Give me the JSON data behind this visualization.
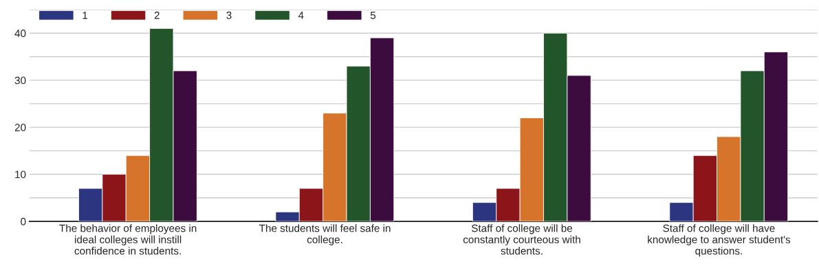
{
  "chart_data": {
    "type": "bar",
    "categories": [
      "The behavior of employees in ideal colleges will instill confidence in students.",
      "The students will feel safe in college.",
      "Staff of college will be constantly courteous with students.",
      "Staff of college will have knowledge to answer student's questions."
    ],
    "series": [
      {
        "name": "1",
        "color": "#2b3580",
        "values": [
          7,
          2,
          4,
          4
        ]
      },
      {
        "name": "2",
        "color": "#8b1519",
        "values": [
          10,
          7,
          7,
          14
        ]
      },
      {
        "name": "3",
        "color": "#d5742a",
        "values": [
          14,
          23,
          22,
          18
        ]
      },
      {
        "name": "4",
        "color": "#22552a",
        "values": [
          41,
          33,
          40,
          32
        ]
      },
      {
        "name": "5",
        "color": "#3c0c3e",
        "values": [
          32,
          39,
          31,
          36
        ]
      }
    ],
    "ylim": [
      0,
      45
    ],
    "yticks": [
      0,
      {
        "value": 5,
        "label": null
      },
      10,
      {
        "value": 15,
        "label": null
      },
      20,
      {
        "value": 25,
        "label": null
      },
      30,
      {
        "value": 35,
        "label": null
      },
      40,
      {
        "value": 45,
        "label": null
      }
    ],
    "grid": "y",
    "legend": "top left"
  }
}
